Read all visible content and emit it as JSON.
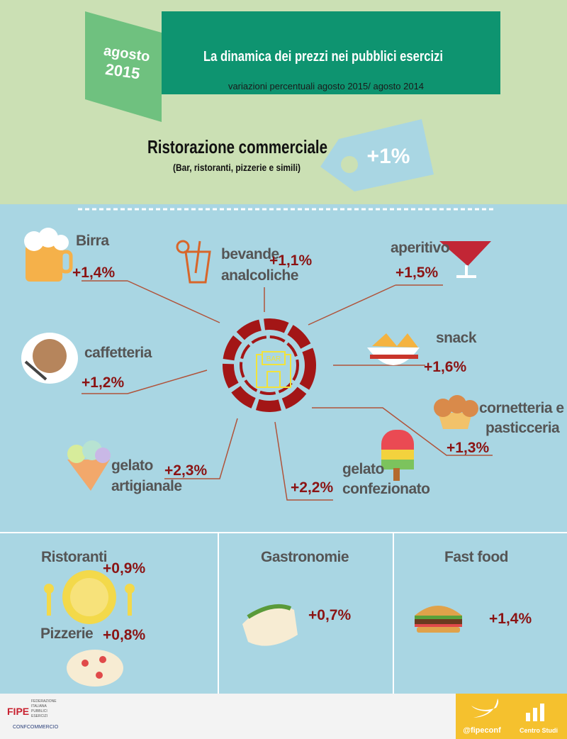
{
  "header": {
    "badge_month": "agosto",
    "badge_year": "2015",
    "title": "La dinamica dei prezzi nei pubblici esercizi",
    "subtitle": "variazioni percentuali agosto 2015/ agosto 2014"
  },
  "headline": {
    "label": "Ristorazione commerciale",
    "note": "(Bar, ristoranti, pizzerie e simili)",
    "value": "+1%"
  },
  "center": {
    "sign": "BAR"
  },
  "items": [
    {
      "label": [
        "Birra"
      ],
      "value": "+1,4%"
    },
    {
      "label": [
        "bevande",
        "analcoliche"
      ],
      "value": "+1,1%"
    },
    {
      "label": [
        "aperitivo"
      ],
      "value": "+1,5%"
    },
    {
      "label": [
        "caffetteria"
      ],
      "value": "+1,2%"
    },
    {
      "label": [
        "snack"
      ],
      "value": "+1,6%"
    },
    {
      "label": [
        "cornetteria e",
        "pasticceria"
      ],
      "value": "+1,3%"
    },
    {
      "label": [
        "gelato",
        "artigianale"
      ],
      "value": "+2,3%"
    },
    {
      "label": [
        "gelato",
        "confezionato"
      ],
      "value": "+2,2%"
    }
  ],
  "bottom": [
    {
      "label": "Ristoranti",
      "value": "+0,9%"
    },
    {
      "label": "Pizzerie",
      "value": "+0,8%"
    },
    {
      "label": "Gastronomie",
      "value": "+0,7%"
    },
    {
      "label": "Fast food",
      "value": "+1,4%"
    }
  ],
  "footer": {
    "logo": "FIPE",
    "org": [
      "FEDERAZIONE",
      "ITALIANA",
      "PUBBLICI",
      "ESERCIZI"
    ],
    "confederation": "CONFCOMMERCIO",
    "twitter": "@fipeconf",
    "studio": "Centro Studi"
  }
}
